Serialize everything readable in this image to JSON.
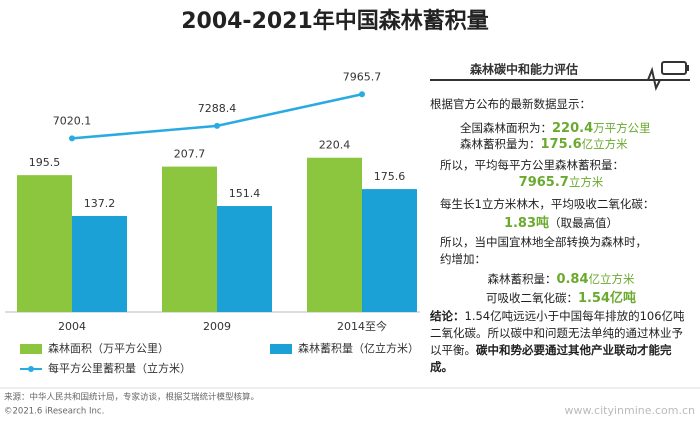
{
  "chart_data": {
    "type": "bar",
    "title": "2004-2021年中国森林蓄积量",
    "categories": [
      "2004",
      "2009",
      "2014至今"
    ],
    "series": [
      {
        "name": "森林面积（万平方公里）",
        "color": "#8cc63f",
        "values": [
          195.5,
          207.7,
          220.4
        ]
      },
      {
        "name": "森林蓄积量（亿立方米）",
        "color": "#1ba1d6",
        "values": [
          137.2,
          151.4,
          175.6
        ]
      },
      {
        "name": "每平方公里蓄积量（立方米）",
        "color": "#29abe2",
        "type": "line",
        "axis": "y2",
        "values": [
          7020.1,
          7288.4,
          7965.7
        ]
      }
    ],
    "ylim": [
      0,
      360
    ],
    "y2lim": [
      3300,
      8700
    ],
    "legend": "bottom"
  },
  "panel": {
    "header": "森林碳中和能力评估",
    "lines": [
      [
        {
          "text": "根据官方公布的最新数据显示：",
          "style": "plain"
        }
      ],
      [
        {
          "text": "全国森林面积为：",
          "style": "plain"
        },
        {
          "text": "220.4",
          "style": "green-bold"
        },
        {
          "text": "万平方公里",
          "style": "green"
        }
      ],
      [
        {
          "text": "森林蓄积量为：",
          "style": "plain"
        },
        {
          "text": "175.6",
          "style": "green-bold"
        },
        {
          "text": "亿立方米",
          "style": "green"
        }
      ],
      [
        {
          "text": "所以，平均每平方公里森林蓄积量：",
          "style": "plain"
        }
      ],
      [
        {
          "text": "7965.7",
          "style": "green-bold"
        },
        {
          "text": "立方米",
          "style": "green"
        }
      ],
      [
        {
          "text": "每生长1立方米林木，平均吸收二氧化碳：",
          "style": "plain"
        }
      ],
      [
        {
          "text": "1.83吨",
          "style": "green-bold"
        },
        {
          "text": "（取最高值）",
          "style": "plain"
        }
      ],
      [
        {
          "text": "所以，当中国宜林地全部转换为森林时，",
          "style": "plain"
        }
      ],
      [
        {
          "text": "约增加：",
          "style": "plain"
        }
      ],
      [
        {
          "text": "森林蓄积量：",
          "style": "plain"
        },
        {
          "text": "0.84",
          "style": "green-bold"
        },
        {
          "text": "亿立方米",
          "style": "green"
        }
      ],
      [
        {
          "text": "可吸收二氧化碳：",
          "style": "plain"
        },
        {
          "text": "1.54亿吨",
          "style": "green-bold"
        }
      ]
    ],
    "conclusion": [
      {
        "text": "结论：",
        "style": "bold"
      },
      {
        "text": "1.54亿吨远远小于中国每年排放的106亿吨二氧化碳。所以碳中和问题无法单纯的通过林业予以平衡。",
        "style": "plain"
      },
      {
        "text": "碳中和势必要通过其他产业联动才能完成。",
        "style": "bold"
      }
    ]
  },
  "footer": {
    "source": "来源：中华人民共和国统计局，专家访谈，根据艾瑞统计模型核算。",
    "copyright": "©2021.6 iResearch Inc.",
    "watermark": "www.cityinmine.com.cn"
  }
}
